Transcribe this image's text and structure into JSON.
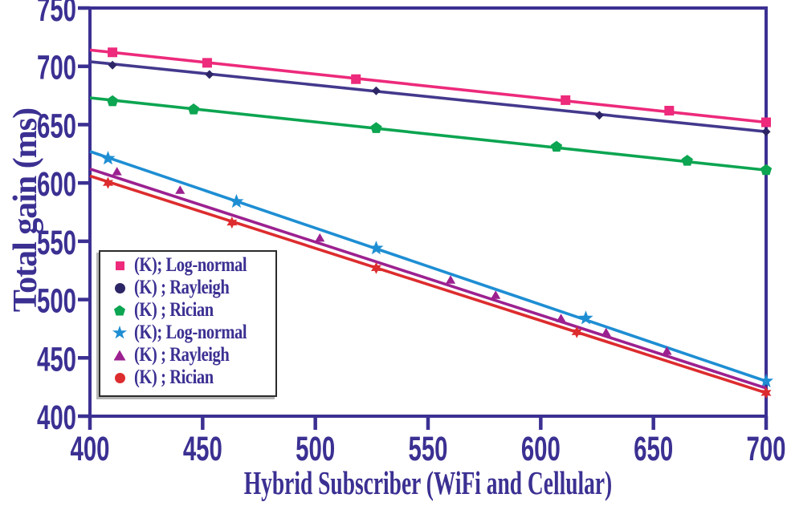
{
  "colors": {
    "axis": "#3b3092",
    "tick_text": "#3b3092",
    "legend_border": "#2b2b2b",
    "background": "#ffffff"
  },
  "chart_data": {
    "type": "line",
    "title": "",
    "xlabel": "Hybrid Subscriber (WiFi and Cellular)",
    "ylabel": "Total gain (ms)",
    "xlim": [
      400,
      700
    ],
    "ylim": [
      400,
      750
    ],
    "xticks": [
      400,
      450,
      500,
      550,
      600,
      650,
      700
    ],
    "yticks": [
      400,
      450,
      500,
      550,
      600,
      650,
      700,
      750
    ],
    "grid": false,
    "legend_position": "lower left",
    "series": [
      {
        "name": "(K); Log-normal",
        "color": "#ed2a7b",
        "marker": "square",
        "legend_marker": "square",
        "marker_size": 6,
        "line": {
          "x": [
            400,
            700
          ],
          "y": [
            714,
            652
          ]
        },
        "markers": [
          [
            410,
            712
          ],
          [
            452,
            703
          ],
          [
            518,
            689
          ],
          [
            611,
            671
          ],
          [
            657,
            662
          ],
          [
            700,
            652
          ]
        ]
      },
      {
        "name": "(K) ; Rayleigh",
        "color": "#43398d",
        "marker_color": "#2d2666",
        "marker": "diamond",
        "legend_marker": "circle",
        "marker_size": 5.5,
        "line": {
          "x": [
            400,
            700
          ],
          "y": [
            704,
            644
          ]
        },
        "markers": [
          [
            410,
            701
          ],
          [
            453,
            693
          ],
          [
            527,
            679
          ],
          [
            626,
            658
          ],
          [
            700,
            644
          ]
        ]
      },
      {
        "name": "(K) ; Rician",
        "color": "#0ca551",
        "marker": "pentagon",
        "legend_marker": "pentagon",
        "marker_size": 7.5,
        "line": {
          "x": [
            400,
            700
          ],
          "y": [
            673,
            611
          ]
        },
        "markers": [
          [
            410,
            670
          ],
          [
            446,
            663
          ],
          [
            527,
            647
          ],
          [
            607,
            631
          ],
          [
            665,
            619
          ],
          [
            700,
            611
          ]
        ]
      },
      {
        "name": "(K); Log-normal",
        "color": "#1e8ed3",
        "marker": "star5",
        "legend_marker": "star5",
        "marker_size": 9.5,
        "line": {
          "x": [
            400,
            700
          ],
          "y": [
            627,
            430
          ]
        },
        "markers": [
          [
            408,
            621
          ],
          [
            465,
            584
          ],
          [
            527,
            544
          ],
          [
            620,
            484
          ],
          [
            700,
            430
          ]
        ]
      },
      {
        "name": "(K) ; Rayleigh",
        "color": "#9c2190",
        "marker": "triangle",
        "legend_marker": "triangle",
        "marker_size": 7,
        "line": {
          "x": [
            400,
            700
          ],
          "y": [
            612,
            424
          ]
        },
        "markers": [
          [
            412,
            609
          ],
          [
            440,
            593
          ],
          [
            502,
            552
          ],
          [
            560,
            516
          ],
          [
            580,
            503
          ],
          [
            609,
            483
          ],
          [
            629,
            471
          ],
          [
            656,
            455
          ]
        ]
      },
      {
        "name": "(K) ; Rician",
        "color": "#dd2c2e",
        "marker": "star6",
        "legend_marker": "circle",
        "marker_size": 7.5,
        "line": {
          "x": [
            400,
            700
          ],
          "y": [
            606,
            420
          ]
        },
        "markers": [
          [
            408,
            600
          ],
          [
            463,
            566
          ],
          [
            527,
            527
          ],
          [
            616,
            472
          ],
          [
            700,
            420
          ]
        ]
      }
    ]
  }
}
